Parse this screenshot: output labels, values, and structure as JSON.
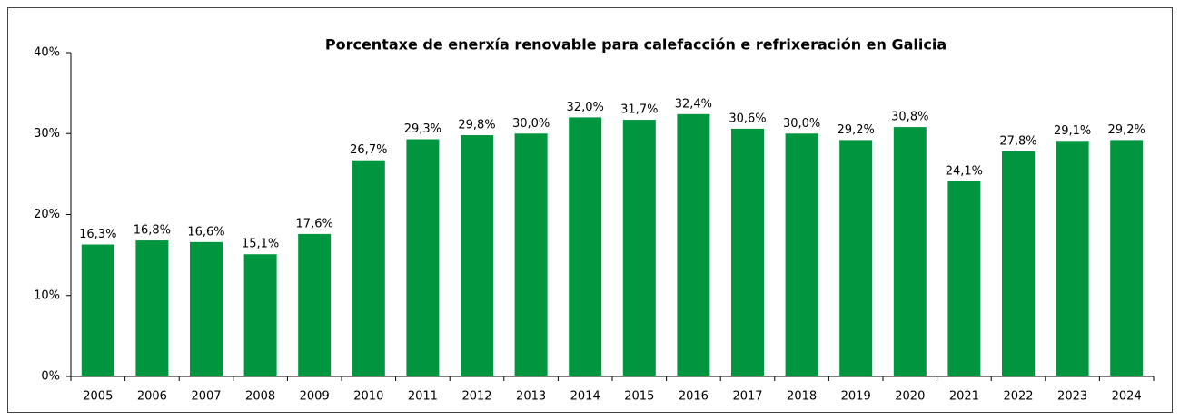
{
  "chart_data": {
    "type": "bar",
    "title": "Porcentaxe de enerxía renovable para calefacción e refrixeración en Galicia",
    "categories": [
      "2005",
      "2006",
      "2007",
      "2008",
      "2009",
      "2010",
      "2011",
      "2012",
      "2013",
      "2014",
      "2015",
      "2016",
      "2017",
      "2018",
      "2019",
      "2020",
      "2021",
      "2022",
      "2023",
      "2024"
    ],
    "values": [
      16.3,
      16.8,
      16.6,
      15.1,
      17.6,
      26.7,
      29.3,
      29.8,
      30.0,
      32.0,
      31.7,
      32.4,
      30.6,
      30.0,
      29.2,
      30.8,
      24.1,
      27.8,
      29.1,
      29.2
    ],
    "value_labels": [
      "16,3%",
      "16,8%",
      "16,6%",
      "15,1%",
      "17,6%",
      "26,7%",
      "29,3%",
      "29,8%",
      "30,0%",
      "32,0%",
      "31,7%",
      "32,4%",
      "30,6%",
      "30,0%",
      "29,2%",
      "30,8%",
      "24,1%",
      "27,8%",
      "29,1%",
      "29,2%"
    ],
    "color": "#00953f",
    "ylim": [
      0,
      40
    ],
    "yticks": [
      {
        "value": 0,
        "label": "0%"
      },
      {
        "value": 10,
        "label": "10%"
      },
      {
        "value": 20,
        "label": "20%"
      },
      {
        "value": 30,
        "label": "30%"
      },
      {
        "value": 40,
        "label": "40%"
      }
    ],
    "grid": false
  }
}
